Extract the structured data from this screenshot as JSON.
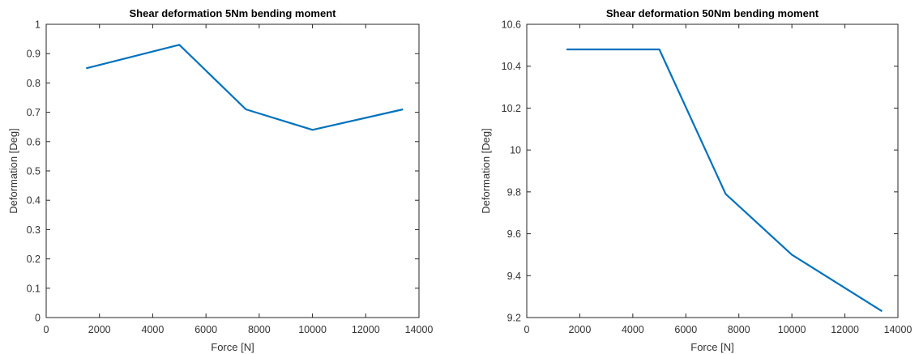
{
  "chart_data": [
    {
      "type": "line",
      "title": "Shear deformation 5Nm bending moment",
      "xlabel": "Force [N]",
      "ylabel": "Deformation [Deg]",
      "xlim": [
        0,
        14000
      ],
      "ylim": [
        0,
        1
      ],
      "xticks": [
        0,
        2000,
        4000,
        6000,
        8000,
        10000,
        12000,
        14000
      ],
      "xtick_labels": [
        "0",
        "2000",
        "4000",
        "6000",
        "8000",
        "10000",
        "12000",
        "14000"
      ],
      "yticks": [
        0,
        0.1,
        0.2,
        0.3,
        0.4,
        0.5,
        0.6,
        0.7,
        0.8,
        0.9,
        1
      ],
      "ytick_labels": [
        "0",
        "0.1",
        "0.2",
        "0.3",
        "0.4",
        "0.5",
        "0.6",
        "0.7",
        "0.8",
        "0.9",
        "1"
      ],
      "grid": false,
      "series": [
        {
          "x": [
            1500,
            5000,
            7500,
            10000,
            13400
          ],
          "y": [
            0.85,
            0.93,
            0.71,
            0.64,
            0.71
          ],
          "color": "#0072BD"
        }
      ]
    },
    {
      "type": "line",
      "title": "Shear deformation 50Nm bending moment",
      "xlabel": "Force [N]",
      "ylabel": "Deformation [Deg]",
      "xlim": [
        0,
        14000
      ],
      "ylim": [
        9.2,
        10.6
      ],
      "xticks": [
        0,
        2000,
        4000,
        6000,
        8000,
        10000,
        12000,
        14000
      ],
      "xtick_labels": [
        "0",
        "2000",
        "4000",
        "6000",
        "8000",
        "10000",
        "12000",
        "14000"
      ],
      "yticks": [
        9.2,
        9.4,
        9.6,
        9.8,
        10,
        10.2,
        10.4,
        10.6
      ],
      "ytick_labels": [
        "9.2",
        "9.4",
        "9.6",
        "9.8",
        "10",
        "10.2",
        "10.4",
        "10.6"
      ],
      "grid": false,
      "series": [
        {
          "x": [
            1500,
            5000,
            7500,
            10000,
            13400
          ],
          "y": [
            10.48,
            10.48,
            9.79,
            9.5,
            9.23
          ],
          "color": "#0072BD"
        }
      ]
    }
  ]
}
